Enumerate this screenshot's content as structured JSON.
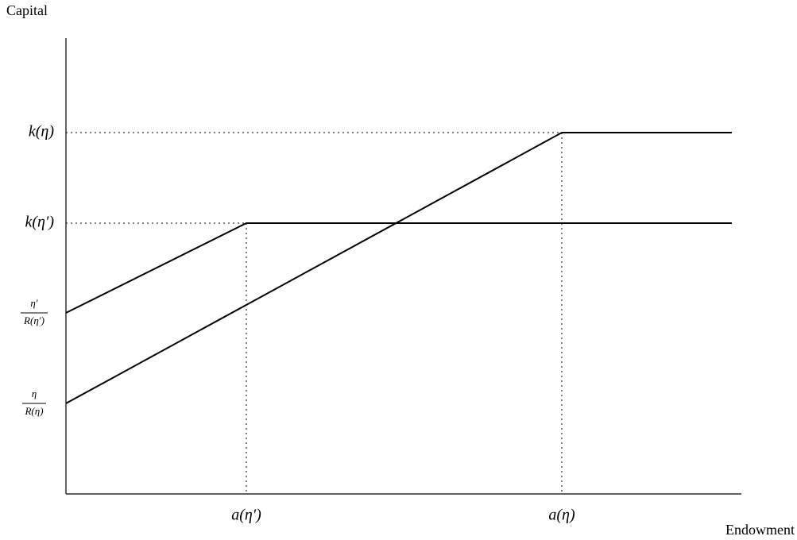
{
  "axes": {
    "y_label": "Capital",
    "x_label": "Endowment"
  },
  "y_labels": [
    {
      "text": "k(η)"
    },
    {
      "text": "k(η′)"
    },
    {
      "numerator": "η′",
      "denominator": "R(η′)"
    },
    {
      "numerator": "η",
      "denominator": "R(η)"
    }
  ],
  "x_labels": [
    "a(η′)",
    "a(η)"
  ]
}
